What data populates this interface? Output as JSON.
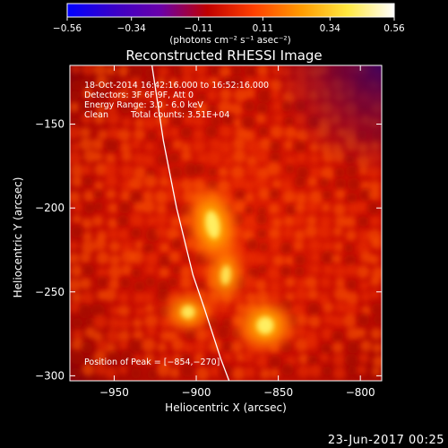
{
  "chart_data": {
    "type": "heatmap",
    "title": "Reconstructed RHESSI Image",
    "xlabel": "Heliocentric X (arcsec)",
    "ylabel": "Heliocentric Y (arcsec)",
    "xlim": [
      -977,
      -787
    ],
    "ylim": [
      -303,
      -115
    ],
    "x_ticks": [
      -950,
      -900,
      -850,
      -800
    ],
    "x_tick_labels": [
      "−950",
      "−900",
      "−850",
      "−800"
    ],
    "y_ticks": [
      -300,
      -250,
      -200,
      -150
    ],
    "y_tick_labels": [
      "−300",
      "−250",
      "−200",
      "−150"
    ],
    "colorbar": {
      "label": "(photons cm⁻² s⁻¹ asec⁻²)",
      "range": [
        -0.56,
        0.56
      ],
      "ticks": [
        -0.56,
        -0.34,
        -0.11,
        0.11,
        0.34,
        0.56
      ],
      "tick_labels": [
        "−0.56",
        "−0.34",
        "−0.11",
        "0.11",
        "0.34",
        "0.56"
      ],
      "colormap": [
        "#0000ff",
        "#3a00c8",
        "#6a00a8",
        "#c00000",
        "#ff4000",
        "#ff9a00",
        "#ffe840",
        "#ffffff"
      ]
    },
    "sources": [
      {
        "x": -890,
        "y": -210,
        "intensity": 0.56
      },
      {
        "x": -882,
        "y": -240,
        "intensity": 0.48
      },
      {
        "x": -858,
        "y": -270,
        "intensity": 0.56
      },
      {
        "x": -905,
        "y": -262,
        "intensity": 0.5
      }
    ],
    "peak": {
      "x": -854,
      "y": -270
    },
    "limb": [
      [
        -927,
        -115
      ],
      [
        -920,
        -160
      ],
      [
        -912,
        -200
      ],
      [
        -902,
        -240
      ],
      [
        -895,
        -260
      ],
      [
        -885,
        -290
      ],
      [
        -880,
        -303
      ]
    ],
    "annotations": {
      "time": "18-Oct-2014 16:42:16.000 to 16:52:16.000",
      "detectors": "Detectors: 3F 6F 9F, Att 0",
      "energy": "Energy Range: 3.0 - 6.0 keV",
      "method": "Clean",
      "counts": "Total counts: 3.51E+04",
      "peak_label": "Position of Peak = [−854,−270]"
    }
  },
  "footer": {
    "date": "23-Jun-2017 00:25"
  }
}
